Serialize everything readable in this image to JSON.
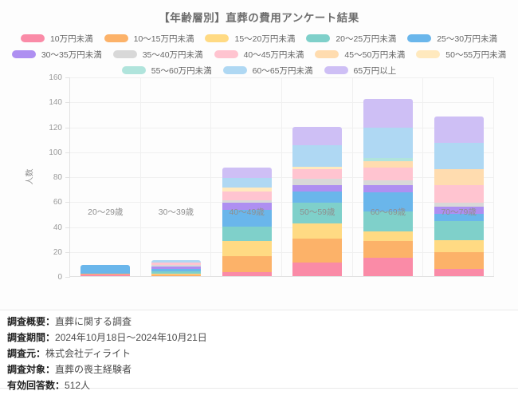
{
  "chart": {
    "title": "【年齢層別】直葬の費用アンケート結果",
    "ylabel": "人数"
  },
  "chart_data": {
    "type": "bar",
    "stacked": true,
    "title": "【年齢層別】直葬の費用アンケート結果",
    "xlabel": "",
    "ylabel": "人数",
    "ylim": [
      0,
      160
    ],
    "y_ticks": [
      0,
      20,
      40,
      60,
      80,
      100,
      120,
      140,
      160
    ],
    "grid": true,
    "legend_position": "top",
    "legend_rows": [
      5,
      5,
      3
    ],
    "categories": [
      "20〜29歳",
      "30〜39歳",
      "40〜49歳",
      "50〜59歳",
      "60〜69歳",
      "70〜79歳"
    ],
    "series": [
      {
        "name": "10万円未満",
        "color": "#FA8BA7",
        "values": [
          1,
          0,
          3,
          11,
          15,
          6
        ]
      },
      {
        "name": "10〜15万円未満",
        "color": "#FCB269",
        "values": [
          1,
          1,
          13,
          19,
          13,
          13
        ]
      },
      {
        "name": "15〜20万円未満",
        "color": "#FFDA83",
        "values": [
          0,
          1,
          12,
          12,
          8,
          10
        ]
      },
      {
        "name": "20〜25万円未満",
        "color": "#7FD0CA",
        "values": [
          0,
          2,
          12,
          17,
          16,
          15
        ]
      },
      {
        "name": "25〜30万円未満",
        "color": "#6AB6EB",
        "values": [
          7,
          2,
          13,
          9,
          15,
          6
        ]
      },
      {
        "name": "30〜35万円未満",
        "color": "#AE8FF1",
        "values": [
          0,
          2,
          6,
          5,
          6,
          6
        ]
      },
      {
        "name": "35〜40万円未満",
        "color": "#D8D8D8",
        "values": [
          0,
          1,
          2,
          5,
          4,
          3
        ]
      },
      {
        "name": "40〜45万円未満",
        "color": "#FFC4D0",
        "values": [
          0,
          2,
          7,
          8,
          10,
          14
        ]
      },
      {
        "name": "45〜50万円未満",
        "color": "#FFDCAF",
        "values": [
          0,
          0,
          0,
          0,
          5,
          13
        ]
      },
      {
        "name": "50〜55万円未満",
        "color": "#FFE9BE",
        "values": [
          0,
          0,
          3,
          2,
          0,
          0
        ]
      },
      {
        "name": "55〜60万円未満",
        "color": "#B0E4DC",
        "values": [
          0,
          0,
          0,
          0,
          3,
          0
        ]
      },
      {
        "name": "60〜65万円未満",
        "color": "#AFD8F3",
        "values": [
          0,
          2,
          8,
          17,
          24,
          21
        ]
      },
      {
        "name": "65万円以上",
        "color": "#CEBFF5",
        "values": [
          0,
          0,
          8,
          15,
          23,
          21
        ]
      }
    ],
    "bar_totals": [
      9,
      13,
      87,
      120,
      142,
      128
    ]
  },
  "footer": {
    "lines": [
      {
        "label": "調査概要：",
        "value": "直葬に関する調査"
      },
      {
        "label": "調査期間：",
        "value": "2024年10月18日〜2024年10月21日"
      },
      {
        "label": "調査元：",
        "value": "株式会社ディライト"
      },
      {
        "label": "調査対象：",
        "value": "直葬の喪主経験者"
      },
      {
        "label": "有効回答数：",
        "value": "512人"
      }
    ]
  }
}
